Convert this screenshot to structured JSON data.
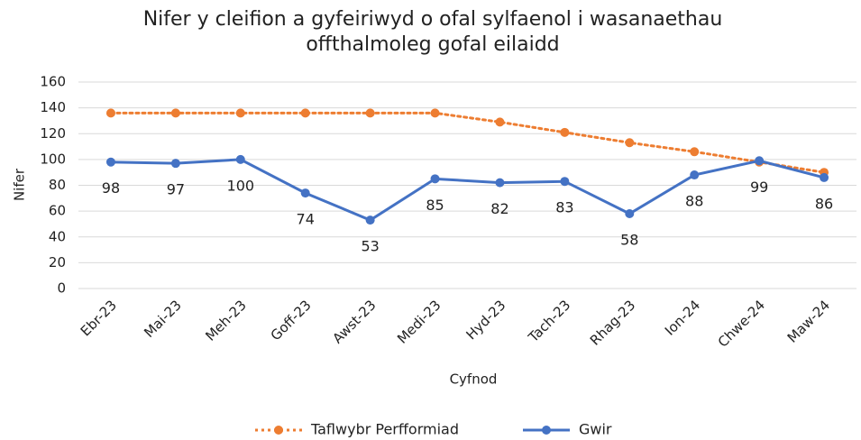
{
  "chart_data": {
    "type": "line",
    "title": [
      "Nifer y cleifion a gyfeiriwyd o ofal sylfaenol i wasanaethau",
      "offthalmoleg gofal eilaidd"
    ],
    "x_label": "Cyfnod",
    "y_label": "Nifer",
    "categories": [
      "Ebr-23",
      "Mai-23",
      "Meh-23",
      "Goff-23",
      "Awst-23",
      "Medi-23",
      "Hyd-23",
      "Tach-23",
      "Rhag-23",
      "Ion-24",
      "Chwe-24",
      "Maw-24"
    ],
    "series": [
      {
        "name": "Taflwybr Perfformiad",
        "color": "#ED7D31",
        "dashed": true,
        "data_labels": false,
        "values": [
          136,
          136,
          136,
          136,
          136,
          136,
          129,
          121,
          113,
          106,
          98,
          90
        ]
      },
      {
        "name": "Gwir",
        "color": "#4472C4",
        "dashed": false,
        "data_labels": true,
        "values": [
          98,
          97,
          100,
          74,
          53,
          85,
          82,
          83,
          58,
          88,
          99,
          86
        ]
      }
    ],
    "ylim": [
      0,
      160
    ],
    "yticks": [
      0,
      20,
      40,
      60,
      80,
      100,
      120,
      140,
      160
    ],
    "grid": true,
    "legend": "bottom"
  }
}
